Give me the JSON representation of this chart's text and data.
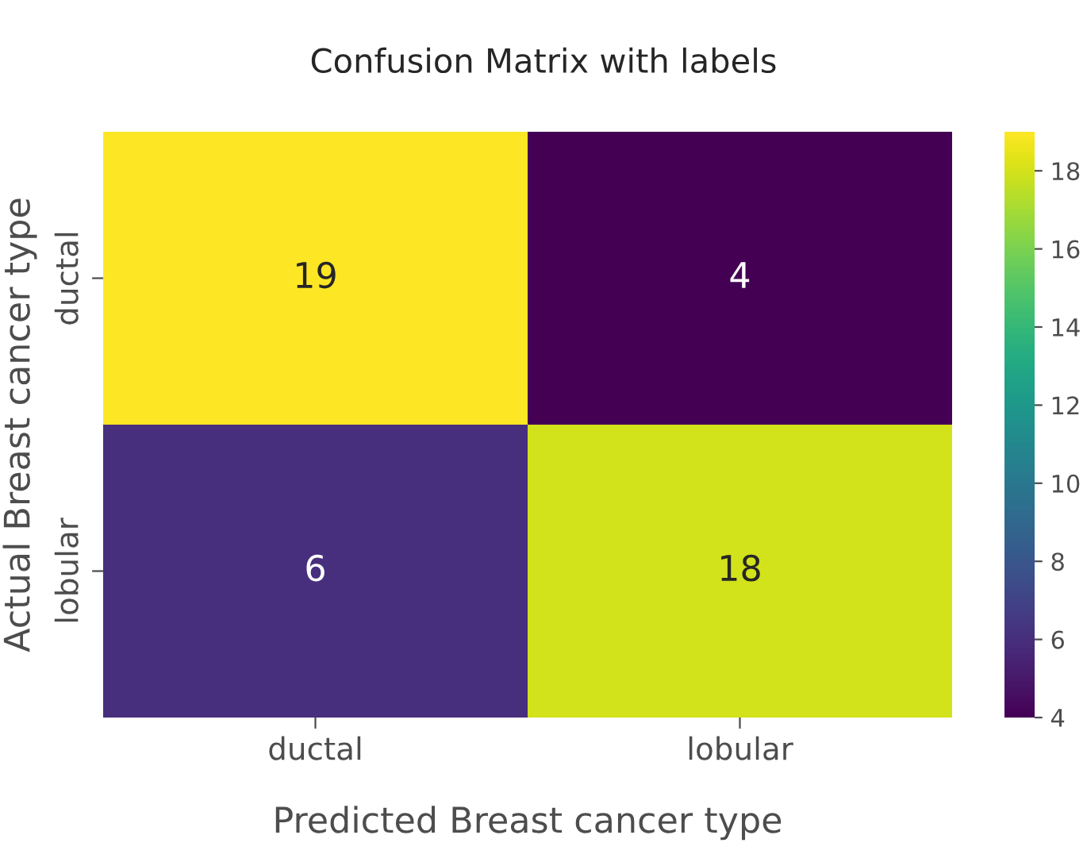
{
  "chart_data": {
    "type": "heatmap",
    "title": "Confusion Matrix with labels",
    "xlabel": "Predicted Breast cancer type",
    "ylabel": "Actual Breast cancer type",
    "categories": [
      "ductal",
      "lobular"
    ],
    "y_categories": [
      "ductal",
      "lobular"
    ],
    "cells": [
      [
        19,
        4
      ],
      [
        6,
        18
      ]
    ],
    "data_labels": true,
    "clim": [
      4,
      19
    ],
    "cticks": [
      4,
      6,
      8,
      10,
      12,
      14,
      16,
      18
    ]
  }
}
